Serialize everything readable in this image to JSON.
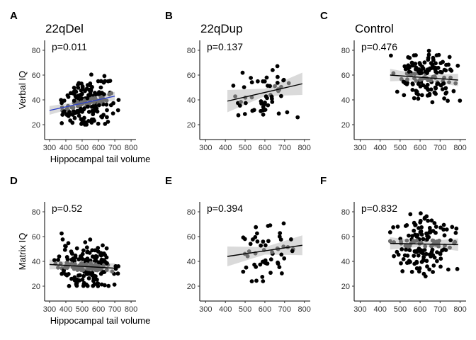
{
  "figure": {
    "colors": {
      "point_dark": "#000000",
      "point_band": "#6e6e6e",
      "band": "#d3d3d3",
      "line_default": "#000000",
      "line_highlight": "#2b3fc9"
    }
  },
  "chart_data": [
    {
      "panel": "A",
      "group_title": "22qDel",
      "type": "scatter",
      "xlabel": "Hippocampal tail volume",
      "ylabel": "Verbal IQ",
      "xlim": [
        270,
        830
      ],
      "ylim": [
        8,
        88
      ],
      "xticks": [
        300,
        400,
        500,
        600,
        700,
        800
      ],
      "yticks": [
        20,
        40,
        60,
        80
      ],
      "annotation": "p=0.011",
      "fit": {
        "x0": 300,
        "y0": 31.5,
        "x1": 700,
        "y1": 43,
        "band": [
          3.5,
          1.8,
          3.5
        ],
        "line_color": "#2b3fc9"
      },
      "x_range": [
        360,
        730
      ],
      "y_range": [
        20,
        63
      ],
      "n_points": 195,
      "seed": 11
    },
    {
      "panel": "B",
      "group_title": "22qDup",
      "type": "scatter",
      "xlabel": "",
      "ylabel": "",
      "xlim": [
        270,
        830
      ],
      "ylim": [
        8,
        88
      ],
      "xticks": [
        300,
        400,
        500,
        600,
        700,
        800
      ],
      "yticks": [
        20,
        40,
        60,
        80
      ],
      "annotation": "p=0.137",
      "fit": {
        "x0": 410,
        "y0": 39,
        "x1": 790,
        "y1": 53,
        "band": [
          9,
          3,
          9
        ],
        "line_color": "#000000"
      },
      "x_range": [
        430,
        780
      ],
      "y_range": [
        20,
        70
      ],
      "n_points": 55,
      "seed": 22
    },
    {
      "panel": "C",
      "group_title": "Control",
      "type": "scatter",
      "xlabel": "",
      "ylabel": "",
      "xlim": [
        270,
        830
      ],
      "ylim": [
        8,
        88
      ],
      "xticks": [
        300,
        400,
        500,
        600,
        700,
        800
      ],
      "yticks": [
        20,
        40,
        60,
        80
      ],
      "annotation": "p=0.476",
      "fit": {
        "x0": 450,
        "y0": 60,
        "x1": 790,
        "y1": 56,
        "band": [
          5,
          2,
          5
        ],
        "line_color": "#000000"
      },
      "x_range": [
        450,
        800
      ],
      "y_range": [
        33,
        80
      ],
      "n_points": 150,
      "seed": 33
    },
    {
      "panel": "D",
      "group_title": "",
      "type": "scatter",
      "xlabel": "Hippocampal tail volume",
      "ylabel": "Matrix IQ",
      "xlim": [
        270,
        830
      ],
      "ylim": [
        8,
        88
      ],
      "xticks": [
        300,
        400,
        500,
        600,
        700,
        800
      ],
      "yticks": [
        20,
        40,
        60,
        80
      ],
      "annotation": "p=0.52",
      "fit": {
        "x0": 300,
        "y0": 37.5,
        "x1": 700,
        "y1": 34.5,
        "band": [
          4,
          1.8,
          4
        ],
        "line_color": "#000000"
      },
      "x_range": [
        330,
        730
      ],
      "y_range": [
        20,
        65
      ],
      "n_points": 195,
      "seed": 44
    },
    {
      "panel": "E",
      "group_title": "",
      "type": "scatter",
      "xlabel": "",
      "ylabel": "",
      "xlim": [
        270,
        830
      ],
      "ylim": [
        8,
        88
      ],
      "xticks": [
        300,
        400,
        500,
        600,
        700,
        800
      ],
      "yticks": [
        20,
        40,
        60,
        80
      ],
      "annotation": "p=0.394",
      "fit": {
        "x0": 410,
        "y0": 44,
        "x1": 790,
        "y1": 53,
        "band": [
          8,
          3,
          8
        ],
        "line_color": "#000000"
      },
      "x_range": [
        430,
        780
      ],
      "y_range": [
        20,
        71
      ],
      "n_points": 55,
      "seed": 55
    },
    {
      "panel": "F",
      "group_title": "",
      "type": "scatter",
      "xlabel": "",
      "ylabel": "",
      "xlim": [
        270,
        830
      ],
      "ylim": [
        8,
        88
      ],
      "xticks": [
        300,
        400,
        500,
        600,
        700,
        800
      ],
      "yticks": [
        20,
        40,
        60,
        80
      ],
      "annotation": "p=0.832",
      "fit": {
        "x0": 450,
        "y0": 54.5,
        "x1": 790,
        "y1": 53.5,
        "band": [
          5,
          2,
          5
        ],
        "line_color": "#000000"
      },
      "x_range": [
        450,
        800
      ],
      "y_range": [
        27,
        80
      ],
      "n_points": 150,
      "seed": 66
    }
  ]
}
